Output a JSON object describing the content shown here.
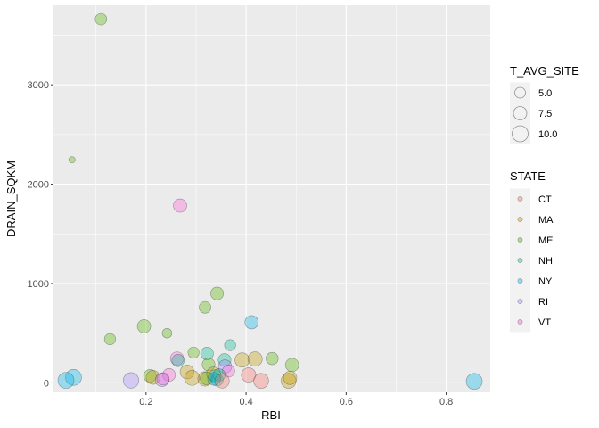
{
  "chart_data": {
    "type": "scatter",
    "xlabel": "RBI",
    "ylabel": "DRAIN_SQKM",
    "xlim": [
      0.015,
      0.888
    ],
    "ylim": [
      -95,
      3800
    ],
    "xticks": [
      0.2,
      0.4,
      0.6,
      0.8
    ],
    "xtick_labels": [
      "0.2",
      "0.4",
      "0.6",
      "0.8"
    ],
    "yticks": [
      0,
      1000,
      2000,
      3000
    ],
    "ytick_labels": [
      "0",
      "1000",
      "2000",
      "3000"
    ],
    "grid": true,
    "legend_position": "right",
    "size_legend": {
      "title": "T_AVG_SITE",
      "values": [
        5.0,
        7.5,
        10.0
      ],
      "labels": [
        "5.0",
        "7.5",
        "10.0"
      ]
    },
    "color_legend": {
      "title": "STATE",
      "categories": [
        "CT",
        "MA",
        "ME",
        "NH",
        "NY",
        "RI",
        "VT"
      ],
      "colors": [
        "#f8766d",
        "#c49a00",
        "#53b400",
        "#00c094",
        "#00b6eb",
        "#a58aff",
        "#fb61d7"
      ]
    },
    "points": [
      {
        "x": 0.11,
        "y": 3660,
        "size": 5.8,
        "state": "ME"
      },
      {
        "x": 0.052,
        "y": 2245,
        "size": 3.0,
        "state": "ME"
      },
      {
        "x": 0.268,
        "y": 1785,
        "size": 7.5,
        "state": "VT"
      },
      {
        "x": 0.342,
        "y": 900,
        "size": 7.0,
        "state": "ME"
      },
      {
        "x": 0.318,
        "y": 760,
        "size": 6.0,
        "state": "ME"
      },
      {
        "x": 0.196,
        "y": 570,
        "size": 7.5,
        "state": "ME"
      },
      {
        "x": 0.411,
        "y": 610,
        "size": 7.5,
        "state": "NY"
      },
      {
        "x": 0.242,
        "y": 500,
        "size": 4.5,
        "state": "ME"
      },
      {
        "x": 0.128,
        "y": 440,
        "size": 5.5,
        "state": "ME"
      },
      {
        "x": 0.368,
        "y": 380,
        "size": 5.5,
        "state": "NH"
      },
      {
        "x": 0.322,
        "y": 295,
        "size": 7.0,
        "state": "NH"
      },
      {
        "x": 0.295,
        "y": 305,
        "size": 5.5,
        "state": "ME"
      },
      {
        "x": 0.392,
        "y": 230,
        "size": 8.5,
        "state": "MA"
      },
      {
        "x": 0.418,
        "y": 240,
        "size": 8.5,
        "state": "MA"
      },
      {
        "x": 0.452,
        "y": 245,
        "size": 6.5,
        "state": "ME"
      },
      {
        "x": 0.262,
        "y": 245,
        "size": 7.5,
        "state": "VT"
      },
      {
        "x": 0.264,
        "y": 225,
        "size": 6.5,
        "state": "NH"
      },
      {
        "x": 0.357,
        "y": 230,
        "size": 7.0,
        "state": "NH"
      },
      {
        "x": 0.492,
        "y": 180,
        "size": 7.5,
        "state": "ME"
      },
      {
        "x": 0.325,
        "y": 185,
        "size": 7.0,
        "state": "ME"
      },
      {
        "x": 0.358,
        "y": 165,
        "size": 7.5,
        "state": "RI"
      },
      {
        "x": 0.365,
        "y": 120,
        "size": 6.5,
        "state": "VT"
      },
      {
        "x": 0.282,
        "y": 110,
        "size": 8.0,
        "state": "MA"
      },
      {
        "x": 0.246,
        "y": 80,
        "size": 7.0,
        "state": "VT"
      },
      {
        "x": 0.208,
        "y": 70,
        "size": 7.0,
        "state": "ME"
      },
      {
        "x": 0.214,
        "y": 55,
        "size": 8.0,
        "state": "MA"
      },
      {
        "x": 0.232,
        "y": 30,
        "size": 7.5,
        "state": "RI"
      },
      {
        "x": 0.234,
        "y": 40,
        "size": 6.5,
        "state": "VT"
      },
      {
        "x": 0.17,
        "y": 25,
        "size": 9.5,
        "state": "RI"
      },
      {
        "x": 0.055,
        "y": 55,
        "size": 10.0,
        "state": "NY"
      },
      {
        "x": 0.04,
        "y": 25,
        "size": 10.0,
        "state": "NY"
      },
      {
        "x": 0.292,
        "y": 50,
        "size": 9.0,
        "state": "MA"
      },
      {
        "x": 0.318,
        "y": 40,
        "size": 8.5,
        "state": "MA"
      },
      {
        "x": 0.321,
        "y": 45,
        "size": 7.0,
        "state": "ME"
      },
      {
        "x": 0.335,
        "y": 90,
        "size": 8.0,
        "state": "MA"
      },
      {
        "x": 0.338,
        "y": 70,
        "size": 6.5,
        "state": "NY"
      },
      {
        "x": 0.342,
        "y": 30,
        "size": 6.5,
        "state": "NH"
      },
      {
        "x": 0.346,
        "y": 80,
        "size": 6.5,
        "state": "NH"
      },
      {
        "x": 0.336,
        "y": 40,
        "size": 7.0,
        "state": "NY"
      },
      {
        "x": 0.352,
        "y": 20,
        "size": 8.5,
        "state": "CT"
      },
      {
        "x": 0.405,
        "y": 80,
        "size": 8.5,
        "state": "CT"
      },
      {
        "x": 0.43,
        "y": 20,
        "size": 9.0,
        "state": "CT"
      },
      {
        "x": 0.485,
        "y": 20,
        "size": 9.0,
        "state": "MA"
      },
      {
        "x": 0.488,
        "y": 50,
        "size": 7.5,
        "state": "MA"
      },
      {
        "x": 0.856,
        "y": 15,
        "size": 10.0,
        "state": "NY"
      }
    ]
  }
}
